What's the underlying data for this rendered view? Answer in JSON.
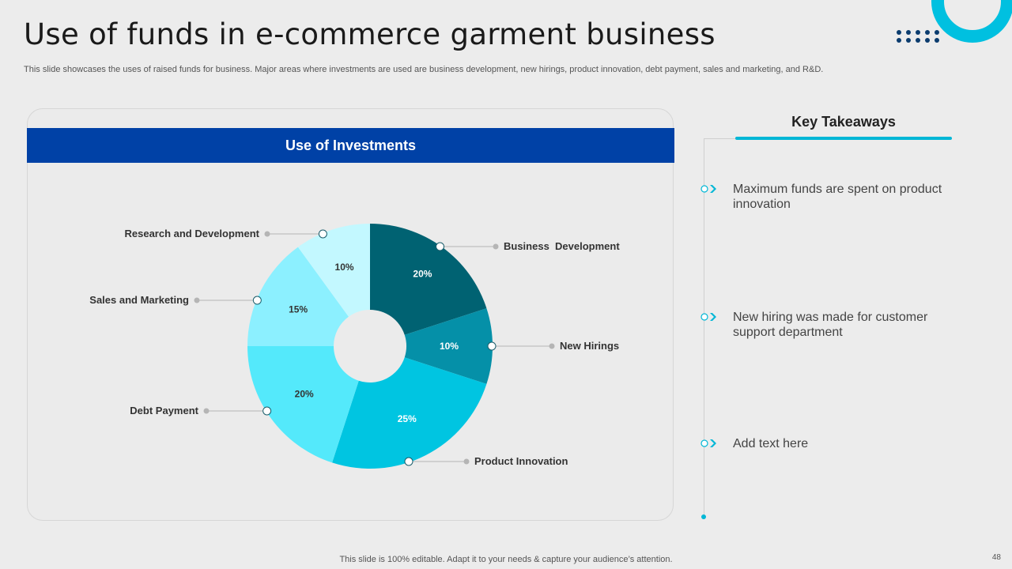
{
  "slide": {
    "title": "Use of funds in e-commerce garment business",
    "subtitle": "This slide showcases the uses of raised funds for business. Major areas where investments are used are business development, new hirings, product innovation, debt payment, sales and marketing, and R&D.",
    "footer": "This slide is 100% editable. Adapt it to your needs & capture your audience’s attention.",
    "page_number": "48"
  },
  "card": {
    "header": "Use of Investments"
  },
  "chart_data": {
    "type": "pie",
    "donut": true,
    "title": "Use of Investments",
    "categories": [
      "Business  Development",
      "New Hirings",
      "Product Innovation",
      "Debt Payment",
      "Sales and Marketing",
      "Research and Development"
    ],
    "values": [
      20,
      10,
      25,
      20,
      15,
      10
    ],
    "labels": [
      "20%",
      "10%",
      "25%",
      "20%",
      "15%",
      "10%"
    ],
    "colors": [
      "#006272",
      "#0590a8",
      "#00c5e1",
      "#54e9fb",
      "#8cf0ff",
      "#c3f8ff"
    ],
    "label_colors": [
      "#ffffff",
      "#ffffff",
      "#ffffff",
      "#333333",
      "#333333",
      "#333333"
    ]
  },
  "takeaways": {
    "title": "Key Takeaways",
    "accent": "#00b7d6",
    "icon": "chevron-right-icon",
    "items": [
      "Maximum funds are spent on product innovation",
      "New hiring was made for customer support department",
      "Add text here"
    ]
  }
}
